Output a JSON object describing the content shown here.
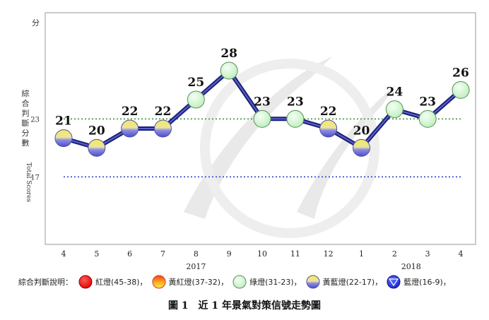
{
  "chart_data": {
    "type": "line",
    "y_unit": "分",
    "ylabel_cn": "綜合判斷分數",
    "ylabel_en": "Total Scores",
    "ylim": [
      10,
      34
    ],
    "reference_lines": [
      {
        "value": 23,
        "label": "23",
        "color": "#2e8b3a"
      },
      {
        "value": 17,
        "label": "17",
        "color": "#2233cc"
      }
    ],
    "categories": [
      "4",
      "5",
      "6",
      "7",
      "8",
      "9",
      "10",
      "11",
      "12",
      "1",
      "2",
      "3",
      "4"
    ],
    "year_labels": [
      {
        "text": "2017",
        "at": 4
      },
      {
        "text": "2018",
        "at": 10.5
      }
    ],
    "values": [
      21,
      20,
      22,
      22,
      25,
      28,
      23,
      23,
      22,
      20,
      24,
      23,
      26
    ],
    "signals": [
      "yellow-blue",
      "yellow-blue",
      "yellow-blue",
      "yellow-blue",
      "green",
      "green",
      "green",
      "green",
      "yellow-blue",
      "yellow-blue",
      "green",
      "green",
      "green"
    ],
    "line_color": "#1a1f7a"
  },
  "legend": {
    "title": "綜合判斷說明：",
    "items": [
      {
        "icon": "red",
        "label": "紅燈(45-38)"
      },
      {
        "icon": "yellow-red",
        "label": "黃紅燈(37-32)"
      },
      {
        "icon": "green",
        "label": "綠燈(31-23)"
      },
      {
        "icon": "yellow-blue",
        "label": "黃藍燈(22-17)"
      },
      {
        "icon": "blue",
        "label": "藍燈(16-9)"
      }
    ]
  },
  "caption": "圖 1　近 1 年景氣對策信號走勢圖"
}
